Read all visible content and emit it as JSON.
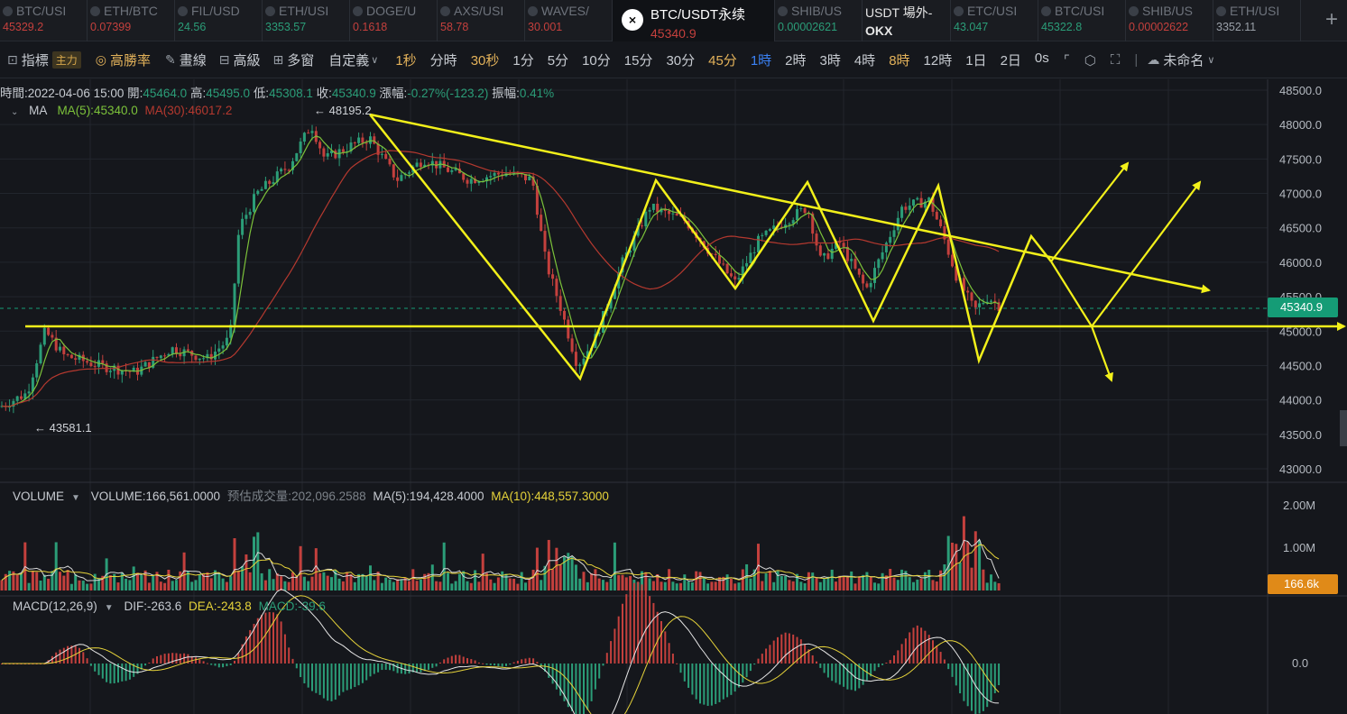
{
  "tickers": [
    {
      "symbol": "BTC/USI",
      "price": "45329.2",
      "dir": "dn"
    },
    {
      "symbol": "ETH/BTC",
      "price": "0.07399",
      "dir": "dn"
    },
    {
      "symbol": "FIL/USD",
      "price": "24.56",
      "dir": "up"
    },
    {
      "symbol": "ETH/USI",
      "price": "3353.57",
      "dir": "up"
    },
    {
      "symbol": "DOGE/U",
      "price": "0.1618",
      "dir": "dn"
    },
    {
      "symbol": "AXS/USI",
      "price": "58.78",
      "dir": "dn"
    },
    {
      "symbol": "WAVES/",
      "price": "30.001",
      "dir": "dn"
    }
  ],
  "active_ticker": {
    "logo": "OKX",
    "symbol": "BTC/USDT永续",
    "price": "45340.9"
  },
  "tickers_right": [
    {
      "symbol": "SHIB/US",
      "price": "0.00002621",
      "dir": "up"
    }
  ],
  "exchange_tab": {
    "title": "USDT 場外-",
    "name": "OKX"
  },
  "tickers_right2": [
    {
      "symbol": "ETC/USI",
      "price": "43.047",
      "dir": "up"
    },
    {
      "symbol": "BTC/USI",
      "price": "45322.8",
      "dir": "up"
    },
    {
      "symbol": "SHIB/US",
      "price": "0.00002622",
      "dir": "dn"
    },
    {
      "symbol": "ETH/USI",
      "price": "3352.11",
      "dir": "gr"
    }
  ],
  "toolbar": {
    "indicators": "指標",
    "main_badge": "主力",
    "win_rate": "高勝率",
    "draw": "畫線",
    "advanced": "高級",
    "multi_window": "多窗",
    "custom": "自定義",
    "timeframes": [
      "1秒",
      "分時",
      "30秒",
      "1分",
      "5分",
      "10分",
      "15分",
      "30分",
      "45分",
      "1時",
      "2時",
      "3時",
      "4時",
      "8時",
      "12時",
      "1日",
      "2日",
      "0s"
    ],
    "highlighted": [
      "1秒",
      "30秒",
      "45分",
      "8時"
    ],
    "selected": "1時",
    "layout_name": "未命名"
  },
  "ohlc": {
    "time_label": "時間:",
    "time": "2022-04-06 15:00",
    "open_label": "開:",
    "open": "45464.0",
    "high_label": "高:",
    "high": "45495.0",
    "low_label": "低:",
    "low": "45308.1",
    "close_label": "收:",
    "close": "45340.9",
    "change_label": "漲幅:",
    "change": "-0.27%(-123.2)",
    "amp_label": "振幅:",
    "amp": "0.41%"
  },
  "ma": {
    "label": "MA",
    "ma5": "MA(5):45340.0",
    "ma30": "MA(30):46017.2"
  },
  "annotations": {
    "high": "← 48195.2",
    "low": "← 43581.1"
  },
  "price_axis": [
    "48500.0",
    "48000.0",
    "47500.0",
    "47000.0",
    "46500.0",
    "46000.0",
    "45500.0",
    "45000.0",
    "44500.0",
    "44000.0",
    "43500.0",
    "43000.0"
  ],
  "current_price_label": "45340.9",
  "volume": {
    "label": "VOLUME",
    "value": "VOLUME:166,561.0000",
    "est": "预估成交量:202,096.2588",
    "ma5": "MA(5):194,428.4000",
    "ma10": "MA(10):448,557.3000"
  },
  "volume_axis": [
    "2.00M",
    "1.00M"
  ],
  "current_volume_label": "166.6k",
  "macd": {
    "label": "MACD(12,26,9)",
    "dif": "DIF:-263.6",
    "dea": "DEA:-243.8",
    "macd": "MACD:-39.6"
  },
  "macd_axis": [
    "0.0"
  ],
  "colors": {
    "up": "#2b9d78",
    "down": "#c4403d",
    "ma5": "#7cc23a",
    "ma30": "#b5392f",
    "drawing": "#f2f01a",
    "volume_ma": "#e6d33a"
  }
}
